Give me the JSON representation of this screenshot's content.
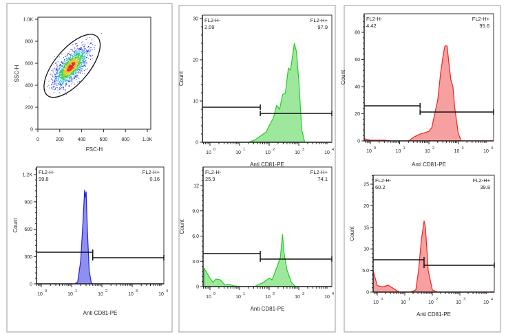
{
  "chart_data": [
    {
      "id": "scatter",
      "type": "scatter",
      "xlabel": "FSC-H",
      "ylabel": "SSC-H",
      "xlim": [
        0,
        1000
      ],
      "ylim": [
        0,
        1000
      ],
      "xticks": [
        {
          "v": 0,
          "label": "0"
        },
        {
          "v": 200,
          "label": "200"
        },
        {
          "v": 400,
          "label": "400"
        },
        {
          "v": 600,
          "label": "600"
        },
        {
          "v": 800,
          "label": "800"
        },
        {
          "v": 1000,
          "label": "1.0K"
        }
      ],
      "yticks": [
        {
          "v": 0,
          "label": "0"
        },
        {
          "v": 200,
          "label": "200"
        },
        {
          "v": 400,
          "label": "400"
        },
        {
          "v": 600,
          "label": "600"
        },
        {
          "v": 800,
          "label": "800"
        },
        {
          "v": 1000,
          "label": "1.0K"
        }
      ],
      "cluster": {
        "center": [
          300,
          570
        ],
        "gate": "ellipse"
      }
    },
    {
      "id": "blue",
      "type": "area",
      "color": "#2020e0",
      "fill": "#8f8ff0",
      "xlabel": "Anti CD81-PE",
      "ylabel": "Count",
      "yticks": [
        {
          "v": 0,
          "label": "0"
        },
        {
          "v": 300,
          "label": "300"
        },
        {
          "v": 600,
          "label": "600"
        },
        {
          "v": 900,
          "label": "900"
        },
        {
          "v": 1200,
          "label": "1.2K"
        }
      ],
      "xticks": [
        "0",
        "1",
        "2",
        "3",
        "4"
      ],
      "gate_split": 50,
      "gate_neg": {
        "label": "FL2-H-",
        "value": "99.8"
      },
      "gate_pos": {
        "label": "FL2-H+",
        "value": "0.16"
      },
      "points": [
        [
          -0.2,
          0
        ],
        [
          1.1,
          0
        ],
        [
          1.2,
          20
        ],
        [
          1.3,
          250
        ],
        [
          1.38,
          700
        ],
        [
          1.43,
          1030
        ],
        [
          1.46,
          950
        ],
        [
          1.48,
          1010
        ],
        [
          1.52,
          600
        ],
        [
          1.58,
          150
        ],
        [
          1.65,
          10
        ],
        [
          1.7,
          0
        ],
        [
          4,
          0
        ]
      ]
    },
    {
      "id": "green-top",
      "type": "area",
      "color": "#22cc22",
      "fill": "#9de89d",
      "xlabel": "Anti CD81-PE",
      "ylabel": "Count",
      "yticks": [
        {
          "v": 0,
          "label": "0"
        },
        {
          "v": 10,
          "label": "10"
        },
        {
          "v": 20,
          "label": "20"
        },
        {
          "v": 30,
          "label": "30"
        }
      ],
      "xticks": [
        "0",
        "1",
        "2",
        "3",
        "4"
      ],
      "gate_split": 50,
      "gate_neg": {
        "label": "FL2-H-",
        "value": "2.09"
      },
      "gate_pos": {
        "label": "FL2-H+",
        "value": "97.9"
      },
      "points": [
        [
          -0.2,
          0
        ],
        [
          1.3,
          0
        ],
        [
          1.5,
          0.5
        ],
        [
          1.7,
          1.5
        ],
        [
          1.9,
          2.5
        ],
        [
          2.0,
          4
        ],
        [
          2.15,
          6
        ],
        [
          2.25,
          9
        ],
        [
          2.35,
          8
        ],
        [
          2.45,
          11.5
        ],
        [
          2.55,
          12
        ],
        [
          2.65,
          18
        ],
        [
          2.72,
          17.5
        ],
        [
          2.85,
          24
        ],
        [
          2.92,
          22
        ],
        [
          3.0,
          15
        ],
        [
          3.1,
          3
        ],
        [
          3.2,
          0
        ],
        [
          4,
          0
        ]
      ]
    },
    {
      "id": "green-bottom",
      "type": "area",
      "color": "#22cc22",
      "fill": "#9de89d",
      "xlabel": "Anti CD81-PE",
      "ylabel": "Count",
      "yticks": [
        {
          "v": 0,
          "label": "0"
        },
        {
          "v": 3,
          "label": "3.0"
        },
        {
          "v": 6,
          "label": "6.0"
        },
        {
          "v": 9,
          "label": "9.0"
        },
        {
          "v": 12,
          "label": "12"
        }
      ],
      "xticks": [
        "0",
        "1",
        "2",
        "3",
        "4"
      ],
      "gate_split": 50,
      "gate_neg": {
        "label": "FL2-H-",
        "value": "25.9"
      },
      "gate_pos": {
        "label": "FL2-H+",
        "value": "74.1"
      },
      "points": [
        [
          -0.2,
          2.2
        ],
        [
          0,
          1
        ],
        [
          0.1,
          0.5
        ],
        [
          0.2,
          0.9
        ],
        [
          0.35,
          0.8
        ],
        [
          0.5,
          0.2
        ],
        [
          0.65,
          0.25
        ],
        [
          0.8,
          0.1
        ],
        [
          1.0,
          0
        ],
        [
          1.5,
          0
        ],
        [
          1.8,
          0.5
        ],
        [
          2.0,
          1
        ],
        [
          2.1,
          0.8
        ],
        [
          2.25,
          2.2
        ],
        [
          2.38,
          3.5
        ],
        [
          2.45,
          6.2
        ],
        [
          2.5,
          4
        ],
        [
          2.6,
          2
        ],
        [
          2.75,
          0.5
        ],
        [
          2.9,
          0
        ],
        [
          4,
          0
        ]
      ]
    },
    {
      "id": "red-top",
      "type": "area",
      "color": "#ee2222",
      "fill": "#f7a0a0",
      "xlabel": "Anti CD81-PE",
      "ylabel": "Count",
      "yticks": [
        {
          "v": 0,
          "label": "0"
        },
        {
          "v": 20,
          "label": "20"
        },
        {
          "v": 40,
          "label": "40"
        },
        {
          "v": 60,
          "label": "60"
        },
        {
          "v": 80,
          "label": "80"
        }
      ],
      "xticks": [
        "0",
        "1",
        "2",
        "3",
        "4"
      ],
      "gate_split": 50,
      "gate_neg": {
        "label": "FL2-H-",
        "value": "4.42"
      },
      "gate_pos": {
        "label": "FL2-H+",
        "value": "95.6"
      },
      "points": [
        [
          -0.2,
          1.5
        ],
        [
          0,
          0.5
        ],
        [
          0.5,
          0.5
        ],
        [
          0.7,
          0
        ],
        [
          1.3,
          0
        ],
        [
          1.5,
          3
        ],
        [
          1.7,
          5
        ],
        [
          1.85,
          6
        ],
        [
          2.0,
          7
        ],
        [
          2.1,
          10
        ],
        [
          2.2,
          20
        ],
        [
          2.3,
          30
        ],
        [
          2.4,
          50
        ],
        [
          2.5,
          65
        ],
        [
          2.55,
          70
        ],
        [
          2.62,
          70
        ],
        [
          2.68,
          58
        ],
        [
          2.75,
          45
        ],
        [
          2.82,
          40
        ],
        [
          2.88,
          25
        ],
        [
          3.0,
          6
        ],
        [
          3.1,
          0
        ],
        [
          4,
          0
        ]
      ]
    },
    {
      "id": "red-bottom",
      "type": "area",
      "color": "#ee2222",
      "fill": "#f7a0a0",
      "xlabel": "Anti CD81-PE",
      "ylabel": "Count",
      "yticks": [
        {
          "v": 0,
          "label": "0"
        },
        {
          "v": 5,
          "label": "5.0"
        },
        {
          "v": 10,
          "label": "10"
        },
        {
          "v": 15,
          "label": "15"
        },
        {
          "v": 20,
          "label": "20"
        },
        {
          "v": 25,
          "label": "25"
        }
      ],
      "xticks": [
        "0",
        "1",
        "2",
        "3",
        "4"
      ],
      "gate_split": 50,
      "gate_neg": {
        "label": "FL2-H-",
        "value": "60.2"
      },
      "gate_pos": {
        "label": "FL2-H+",
        "value": "39.8"
      },
      "points": [
        [
          -0.2,
          5
        ],
        [
          0,
          1.5
        ],
        [
          0.2,
          1.2
        ],
        [
          0.4,
          1.6
        ],
        [
          0.6,
          0.8
        ],
        [
          0.8,
          0
        ],
        [
          1.2,
          0
        ],
        [
          1.4,
          0.5
        ],
        [
          1.5,
          5
        ],
        [
          1.6,
          12
        ],
        [
          1.7,
          16.5
        ],
        [
          1.75,
          15
        ],
        [
          1.85,
          5
        ],
        [
          2.0,
          0.5
        ],
        [
          2.2,
          0
        ],
        [
          4,
          0
        ]
      ]
    }
  ]
}
